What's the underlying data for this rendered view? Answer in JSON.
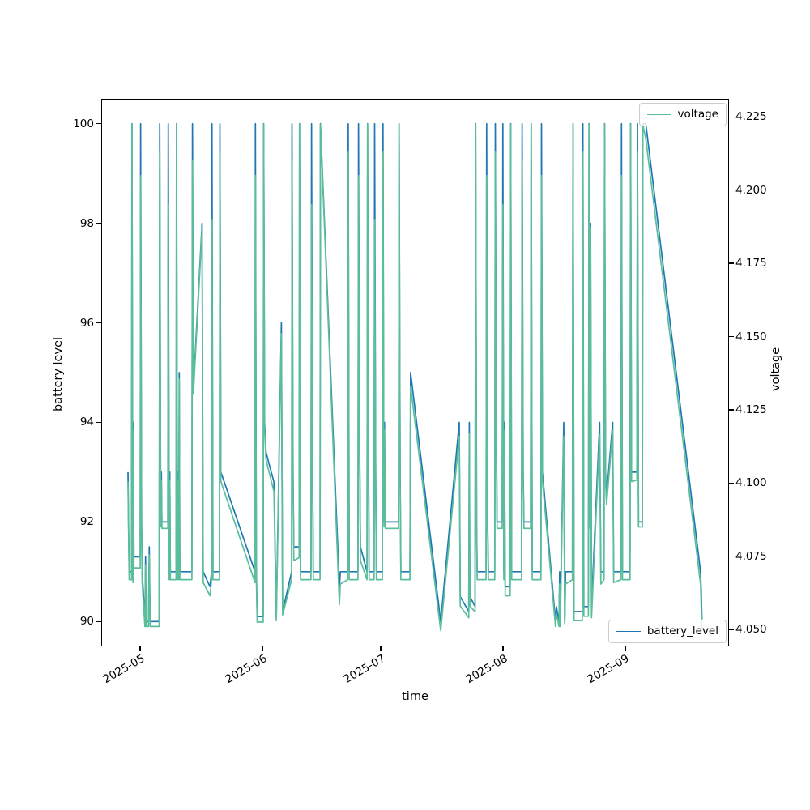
{
  "colors": {
    "background": "#ffffff",
    "spine": "#000000",
    "legend_border": "#cccccc",
    "battery_line": "#1f77b4",
    "voltage_line": "#5abe9b"
  },
  "chart_data": {
    "type": "line",
    "title": "",
    "xlabel": "time",
    "ylabel_left": "battery level",
    "ylabel_right": "voltage",
    "grid": false,
    "x_unit": "days since 2025-04-28",
    "xlim": [
      -6.78,
      152.4
    ],
    "ylim_left": [
      89.5,
      100.5
    ],
    "ylim_right": [
      4.0442,
      4.2312
    ],
    "x_ticks": [
      {
        "pos": 3.08,
        "label": "2025-05"
      },
      {
        "pos": 34.08,
        "label": "2025-06"
      },
      {
        "pos": 64.08,
        "label": "2025-07"
      },
      {
        "pos": 95.08,
        "label": "2025-08"
      },
      {
        "pos": 126.08,
        "label": "2025-09"
      }
    ],
    "y_ticks_left": [
      {
        "pos": 90,
        "label": "90"
      },
      {
        "pos": 92,
        "label": "92"
      },
      {
        "pos": 94,
        "label": "94"
      },
      {
        "pos": 96,
        "label": "96"
      },
      {
        "pos": 98,
        "label": "98"
      },
      {
        "pos": 100,
        "label": "100"
      }
    ],
    "y_ticks_right": [
      {
        "pos": 4.05,
        "label": "4.050"
      },
      {
        "pos": 4.075,
        "label": "4.075"
      },
      {
        "pos": 4.1,
        "label": "4.100"
      },
      {
        "pos": 4.125,
        "label": "4.125"
      },
      {
        "pos": 4.15,
        "label": "4.150"
      },
      {
        "pos": 4.175,
        "label": "4.175"
      },
      {
        "pos": 4.2,
        "label": "4.200"
      },
      {
        "pos": 4.225,
        "label": "4.225"
      }
    ],
    "legends": {
      "top": {
        "label": "voltage",
        "location": "upper right"
      },
      "bottom": {
        "label": "battery_level",
        "location": "lower right"
      }
    },
    "series": [
      {
        "name": "battery_level",
        "axis": "left",
        "color": "#1f77b4",
        "column": 1
      },
      {
        "name": "voltage",
        "axis": "right",
        "color": "#5abe9b",
        "column": 2
      }
    ],
    "points": [
      [
        0.0,
        93,
        4.1005
      ],
      [
        0.15,
        92,
        4.0845
      ],
      [
        0.3,
        91,
        4.067
      ],
      [
        0.9,
        91,
        4.067
      ],
      [
        1.0,
        100,
        4.2225
      ],
      [
        1.25,
        91,
        4.066
      ],
      [
        1.35,
        94,
        4.118
      ],
      [
        1.5,
        91.3,
        4.071
      ],
      [
        3.1,
        91.3,
        4.071
      ],
      [
        3.2,
        100,
        4.205
      ],
      [
        3.45,
        92,
        4.0845
      ],
      [
        3.6,
        91,
        4.066
      ],
      [
        4.3,
        90,
        4.051
      ],
      [
        4.45,
        91.3,
        4.072
      ],
      [
        4.6,
        90,
        4.051
      ],
      [
        5.2,
        90,
        4.051
      ],
      [
        5.4,
        91.5,
        4.0755
      ],
      [
        5.6,
        90,
        4.051
      ],
      [
        7.9,
        90,
        4.051
      ],
      [
        8.05,
        100,
        4.213
      ],
      [
        8.3,
        92,
        4.085
      ],
      [
        8.45,
        93,
        4.101
      ],
      [
        8.6,
        92,
        4.0845
      ],
      [
        10.1,
        92,
        4.0845
      ],
      [
        10.2,
        100,
        4.195
      ],
      [
        10.45,
        91,
        4.067
      ],
      [
        10.6,
        93,
        4.101
      ],
      [
        10.75,
        91,
        4.067
      ],
      [
        12.2,
        91,
        4.067
      ],
      [
        12.3,
        100,
        4.2225
      ],
      [
        12.55,
        91,
        4.067
      ],
      [
        12.7,
        93,
        4.101
      ],
      [
        12.85,
        91,
        4.067
      ],
      [
        13.0,
        95,
        4.1355
      ],
      [
        13.15,
        91,
        4.067
      ],
      [
        16.2,
        91,
        4.067
      ],
      [
        16.35,
        100,
        4.21
      ],
      [
        16.6,
        94.7,
        4.1305
      ],
      [
        18.8,
        98,
        4.187
      ],
      [
        19.05,
        91,
        4.066
      ],
      [
        20.8,
        90.7,
        4.0615
      ],
      [
        21.2,
        91,
        4.067
      ],
      [
        21.3,
        100,
        4.19
      ],
      [
        21.55,
        91,
        4.067
      ],
      [
        23.2,
        91,
        4.067
      ],
      [
        23.3,
        100,
        4.213
      ],
      [
        23.55,
        93,
        4.1005
      ],
      [
        32.2,
        91,
        4.066
      ],
      [
        32.3,
        100,
        4.205
      ],
      [
        32.55,
        91,
        4.067
      ],
      [
        32.75,
        90.1,
        4.0525
      ],
      [
        34.3,
        90.1,
        4.0525
      ],
      [
        34.4,
        100,
        4.2225
      ],
      [
        34.65,
        94,
        4.118
      ],
      [
        35.0,
        93.4,
        4.108
      ],
      [
        37.0,
        92.8,
        4.097
      ],
      [
        37.6,
        90.1,
        4.053
      ],
      [
        38.9,
        96,
        4.151
      ],
      [
        39.2,
        90.2,
        4.055
      ],
      [
        41.5,
        91,
        4.067
      ],
      [
        41.6,
        100,
        4.21
      ],
      [
        41.85,
        93,
        4.1005
      ],
      [
        42.05,
        91.5,
        4.0735
      ],
      [
        43.4,
        91.5,
        4.0745
      ],
      [
        43.5,
        100,
        4.2225
      ],
      [
        43.75,
        91,
        4.067
      ],
      [
        46.4,
        91,
        4.067
      ],
      [
        46.55,
        100,
        4.195
      ],
      [
        46.8,
        93,
        4.1005
      ],
      [
        47.0,
        91,
        4.067
      ],
      [
        48.7,
        91,
        4.067
      ],
      [
        48.8,
        100,
        4.2225
      ],
      [
        53.6,
        90.7,
        4.0585
      ],
      [
        53.85,
        91,
        4.0655
      ],
      [
        55.7,
        91,
        4.067
      ],
      [
        55.85,
        100,
        4.213
      ],
      [
        56.1,
        91,
        4.067
      ],
      [
        58.3,
        91,
        4.067
      ],
      [
        58.45,
        100,
        4.205
      ],
      [
        58.7,
        94,
        4.118
      ],
      [
        58.95,
        91.5,
        4.0735
      ],
      [
        60.6,
        91,
        4.067
      ],
      [
        60.75,
        100,
        4.2225
      ],
      [
        60.95,
        94,
        4.119
      ],
      [
        61.15,
        91,
        4.067
      ],
      [
        62.4,
        91,
        4.067
      ],
      [
        62.55,
        100,
        4.19
      ],
      [
        62.8,
        93,
        4.101
      ],
      [
        63.0,
        91,
        4.067
      ],
      [
        64.5,
        91,
        4.067
      ],
      [
        64.65,
        100,
        4.213
      ],
      [
        64.9,
        92,
        4.085
      ],
      [
        65.05,
        94,
        4.118
      ],
      [
        65.25,
        92,
        4.0845
      ],
      [
        68.6,
        92,
        4.0845
      ],
      [
        68.75,
        100,
        4.2225
      ],
      [
        69.0,
        93,
        4.1005
      ],
      [
        69.2,
        91,
        4.067
      ],
      [
        71.5,
        91,
        4.067
      ],
      [
        71.65,
        95,
        4.133
      ],
      [
        79.3,
        90,
        4.0496
      ],
      [
        84.0,
        94,
        4.116
      ],
      [
        84.25,
        90.5,
        4.058
      ],
      [
        86.4,
        90.2,
        4.054
      ],
      [
        86.55,
        94,
        4.117
      ],
      [
        86.7,
        90.5,
        4.058
      ],
      [
        88.0,
        90.3,
        4.056
      ],
      [
        88.15,
        100,
        4.2225
      ],
      [
        88.4,
        92,
        4.085
      ],
      [
        88.55,
        91,
        4.067
      ],
      [
        90.8,
        91,
        4.067
      ],
      [
        90.95,
        100,
        4.205
      ],
      [
        91.2,
        92,
        4.0845
      ],
      [
        91.4,
        91,
        4.067
      ],
      [
        93.0,
        91,
        4.067
      ],
      [
        93.15,
        100,
        4.213
      ],
      [
        93.4,
        94,
        4.118
      ],
      [
        93.6,
        92,
        4.0845
      ],
      [
        94.9,
        92,
        4.0845
      ],
      [
        95.05,
        100,
        4.195
      ],
      [
        95.3,
        91,
        4.067
      ],
      [
        95.45,
        94,
        4.118
      ],
      [
        95.65,
        90.7,
        4.0615
      ],
      [
        96.9,
        90.7,
        4.0615
      ],
      [
        97.05,
        100,
        4.2225
      ],
      [
        97.3,
        91,
        4.067
      ],
      [
        99.8,
        91,
        4.067
      ],
      [
        99.95,
        100,
        4.21
      ],
      [
        100.2,
        93,
        4.1005
      ],
      [
        100.4,
        92,
        4.0845
      ],
      [
        102.1,
        92,
        4.0845
      ],
      [
        102.25,
        100,
        4.2225
      ],
      [
        102.5,
        91,
        4.067
      ],
      [
        104.7,
        91,
        4.067
      ],
      [
        104.85,
        100,
        4.205
      ],
      [
        105.1,
        93,
        4.1005
      ],
      [
        108.4,
        90,
        4.051
      ],
      [
        108.6,
        90.3,
        4.0555
      ],
      [
        109.3,
        90,
        4.051
      ],
      [
        109.45,
        91,
        4.0655
      ],
      [
        109.6,
        90,
        4.051
      ],
      [
        110.5,
        94,
        4.116
      ],
      [
        110.75,
        90,
        4.052
      ],
      [
        110.95,
        91,
        4.0655
      ],
      [
        112.7,
        91,
        4.067
      ],
      [
        112.85,
        100,
        4.2225
      ],
      [
        113.1,
        90.2,
        4.053
      ],
      [
        115.2,
        90.2,
        4.053
      ],
      [
        115.35,
        100,
        4.213
      ],
      [
        115.6,
        90.3,
        4.0545
      ],
      [
        116.75,
        90.3,
        4.0545
      ],
      [
        116.9,
        100,
        4.2225
      ],
      [
        117.15,
        92,
        4.0845
      ],
      [
        117.3,
        98,
        4.1875
      ],
      [
        117.55,
        90.3,
        4.054
      ],
      [
        119.6,
        94,
        4.1165
      ],
      [
        119.9,
        91,
        4.0655
      ],
      [
        120.7,
        91,
        4.067
      ],
      [
        120.85,
        100,
        4.2225
      ],
      [
        121.1,
        93,
        4.1005
      ],
      [
        121.35,
        92.5,
        4.0925
      ],
      [
        122.9,
        94,
        4.118
      ],
      [
        123.15,
        91,
        4.066
      ],
      [
        125.0,
        91,
        4.067
      ],
      [
        125.15,
        100,
        4.205
      ],
      [
        125.4,
        91,
        4.067
      ],
      [
        127.3,
        91,
        4.067
      ],
      [
        127.45,
        100,
        4.2225
      ],
      [
        127.7,
        93,
        4.1005
      ],
      [
        129.05,
        93,
        4.101
      ],
      [
        129.2,
        100,
        4.213
      ],
      [
        129.45,
        92,
        4.085
      ],
      [
        130.45,
        92,
        4.085
      ],
      [
        130.55,
        100,
        4.2225
      ],
      [
        131.3,
        100,
        4.2175
      ],
      [
        145.2,
        91,
        4.0655
      ],
      [
        145.35,
        90.6,
        4.058
      ],
      [
        145.55,
        90.05,
        4.0505
      ]
    ]
  }
}
